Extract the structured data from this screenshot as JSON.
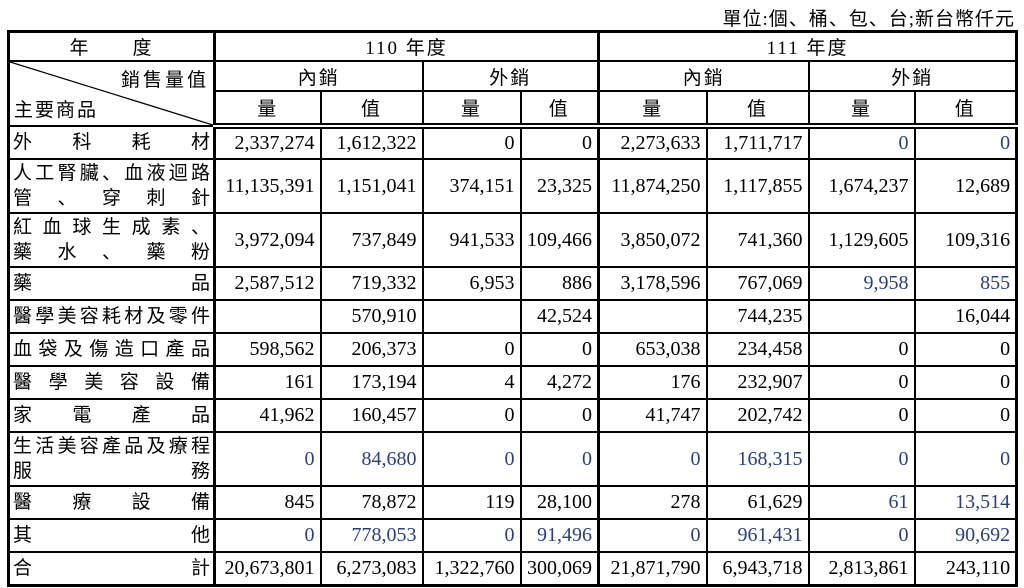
{
  "unit_note": "單位:個、桶、包、台;新台幣仟元",
  "colors": {
    "border_black": "#000000",
    "text_black": "#000000",
    "highlight_blue": "#263e8e"
  },
  "table": {
    "corner": {
      "year_label": "年　　度",
      "sales_label": "銷售量值",
      "product_label": "主要商品"
    },
    "years": [
      "110 年度",
      "111 年度"
    ],
    "channels": [
      "內銷",
      "外銷",
      "內銷",
      "外銷"
    ],
    "measures": [
      "量",
      "值",
      "量",
      "值",
      "量",
      "值",
      "量",
      "值"
    ],
    "rows": [
      {
        "name_lines": [
          "外科耗材"
        ],
        "values": [
          "2,337,274",
          "1,612,322",
          "0",
          "0",
          "2,273,633",
          "1,711,717",
          "0",
          "0"
        ],
        "blue_cols": [
          6,
          7
        ]
      },
      {
        "name_lines": [
          "人工腎臟、血液迴路",
          "管、穿刺針"
        ],
        "values": [
          "11,135,391",
          "1,151,041",
          "374,151",
          "23,325",
          "11,874,250",
          "1,117,855",
          "1,674,237",
          "12,689"
        ],
        "blue_cols": []
      },
      {
        "name_lines": [
          "紅血球生成素、",
          "藥水、藥粉"
        ],
        "values": [
          "3,972,094",
          "737,849",
          "941,533",
          "109,466",
          "3,850,072",
          "741,360",
          "1,129,605",
          "109,316"
        ],
        "blue_cols": []
      },
      {
        "name_lines": [
          "藥品"
        ],
        "values": [
          "2,587,512",
          "719,332",
          "6,953",
          "886",
          "3,178,596",
          "767,069",
          "9,958",
          "855"
        ],
        "blue_cols": [
          6,
          7
        ]
      },
      {
        "name_lines": [
          "醫學美容耗材及零件"
        ],
        "values": [
          "",
          "570,910",
          "",
          "42,524",
          "",
          "744,235",
          "",
          "16,044"
        ],
        "blue_cols": []
      },
      {
        "name_lines": [
          "血袋及傷造口產品"
        ],
        "values": [
          "598,562",
          "206,373",
          "0",
          "0",
          "653,038",
          "234,458",
          "0",
          "0"
        ],
        "blue_cols": []
      },
      {
        "name_lines": [
          "醫學美容設備"
        ],
        "values": [
          "161",
          "173,194",
          "4",
          "4,272",
          "176",
          "232,907",
          "0",
          "0"
        ],
        "blue_cols": []
      },
      {
        "name_lines": [
          "家電產品"
        ],
        "values": [
          "41,962",
          "160,457",
          "0",
          "0",
          "41,747",
          "202,742",
          "0",
          "0"
        ],
        "blue_cols": []
      },
      {
        "name_lines": [
          "生活美容產品及療程",
          "服務"
        ],
        "values": [
          "0",
          "84,680",
          "0",
          "0",
          "0",
          "168,315",
          "0",
          "0"
        ],
        "blue_cols": [
          0,
          1,
          2,
          3,
          4,
          5,
          6,
          7
        ]
      },
      {
        "name_lines": [
          "醫療設備"
        ],
        "values": [
          "845",
          "78,872",
          "119",
          "28,100",
          "278",
          "61,629",
          "61",
          "13,514"
        ],
        "blue_cols": [
          6,
          7
        ]
      },
      {
        "name_lines": [
          "其他"
        ],
        "values": [
          "0",
          "778,053",
          "0",
          "91,496",
          "0",
          "961,431",
          "0",
          "90,692"
        ],
        "blue_cols": [
          0,
          1,
          2,
          3,
          4,
          5,
          6,
          7
        ]
      },
      {
        "name_lines": [
          "合計"
        ],
        "values": [
          "20,673,801",
          "6,273,083",
          "1,322,760",
          "300,069",
          "21,871,790",
          "6,943,718",
          "2,813,861",
          "243,110"
        ],
        "blue_cols": []
      }
    ]
  }
}
